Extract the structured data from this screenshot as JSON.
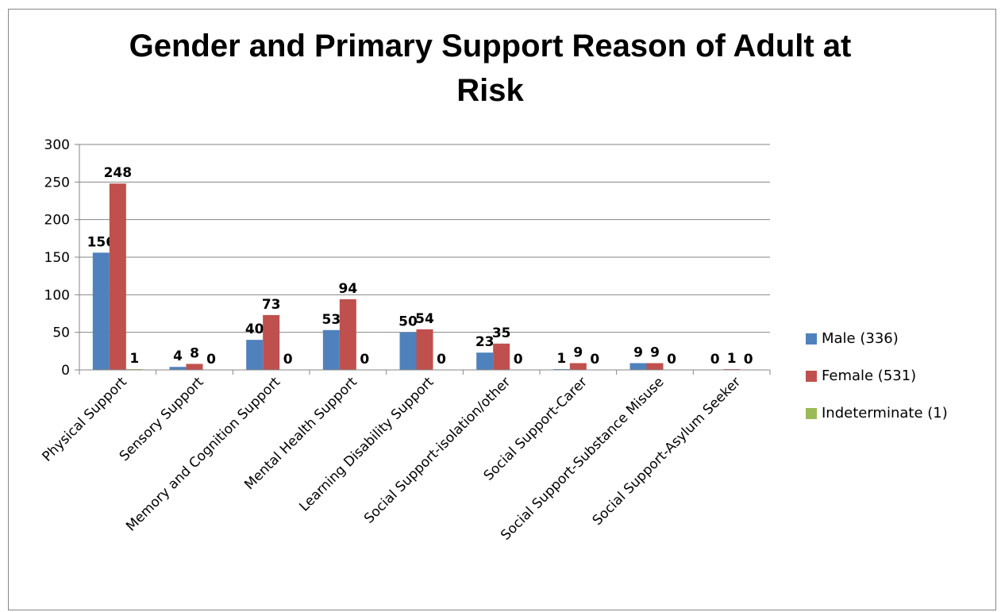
{
  "chart_data": {
    "type": "bar",
    "title": "Gender and Primary Support Reason of Adult at Risk",
    "title_line1": "Gender and Primary Support Reason of Adult at",
    "title_line2": "Risk",
    "categories": [
      "Physical Support",
      "Sensory Support",
      "Memory and Cognition Support",
      "Mental Health Support",
      "Learning Disability Support",
      "Social Support-isolation/other",
      "Social Support-Carer",
      "Social Support-Substance Misuse",
      "Social Support-Asylum Seeker"
    ],
    "series": [
      {
        "name": "Male (336)",
        "color": "#4F81BD",
        "values": [
          156,
          4,
          40,
          53,
          50,
          23,
          1,
          9,
          0
        ]
      },
      {
        "name": "Female (531)",
        "color": "#C0504D",
        "values": [
          248,
          8,
          73,
          94,
          54,
          35,
          9,
          9,
          1
        ]
      },
      {
        "name": "Indeterminate (1)",
        "color": "#9BBB59",
        "values": [
          1,
          0,
          0,
          0,
          0,
          0,
          0,
          0,
          0
        ]
      }
    ],
    "ylim": [
      0,
      300
    ],
    "yticks": [
      0,
      50,
      100,
      150,
      200,
      250,
      300
    ],
    "grid": true,
    "legend_position": "right",
    "data_labels": true
  }
}
